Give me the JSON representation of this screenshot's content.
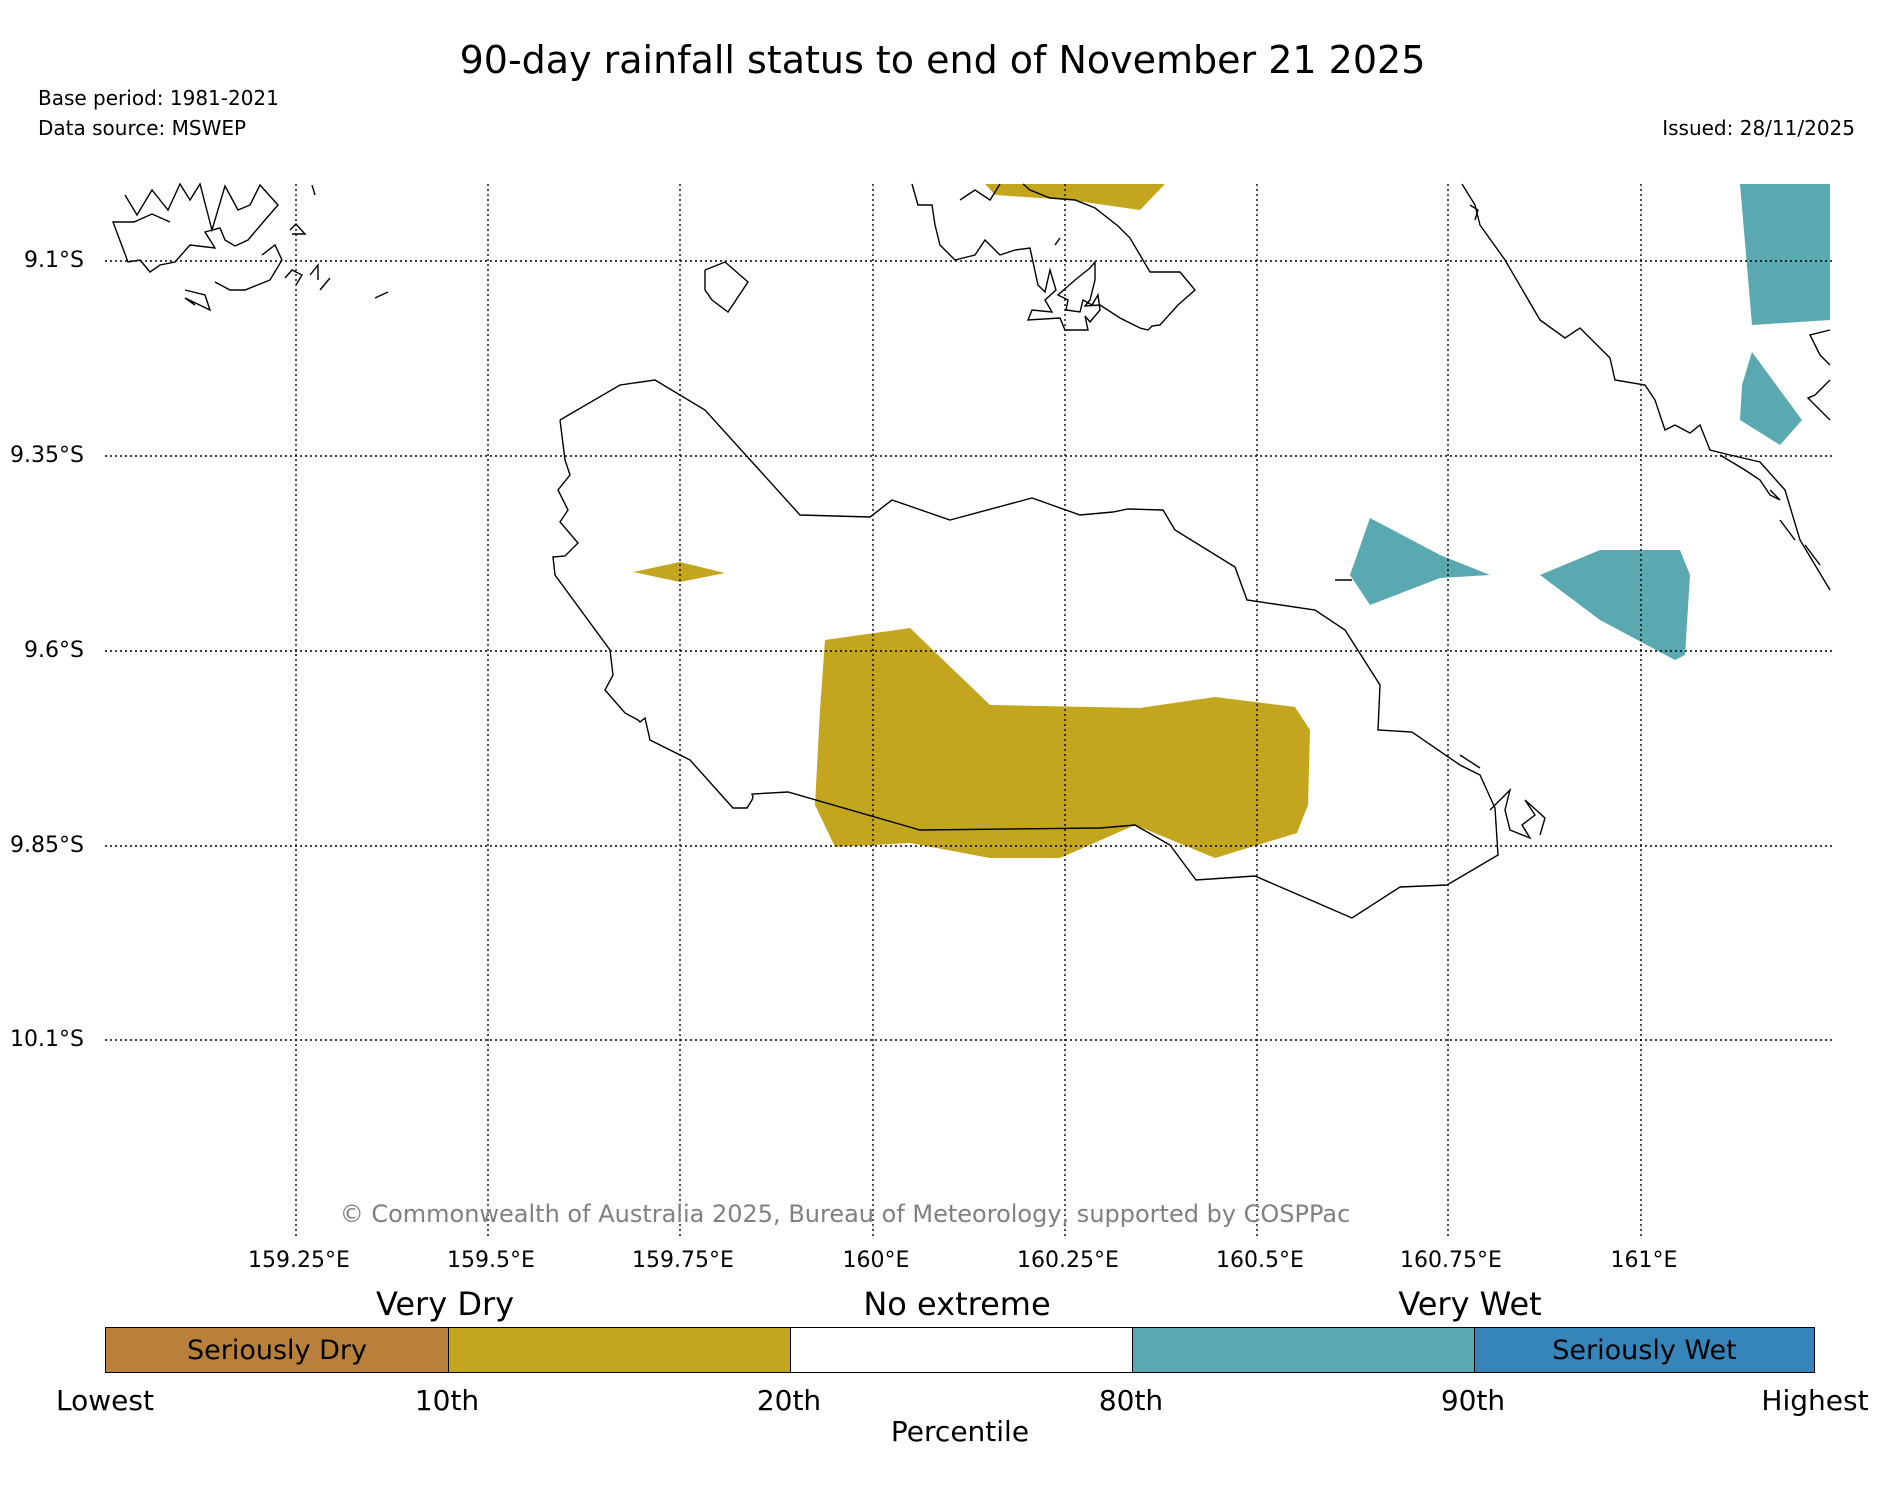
{
  "header": {
    "title": "90-day rainfall status to end of November 21 2025",
    "base_period": "Base period: 1981-2021",
    "data_source": "Data source: MSWEP",
    "issued": "Issued: 28/11/2025"
  },
  "map": {
    "lat_labels": [
      "9.1°S",
      "9.35°S",
      "9.6°S",
      "9.85°S",
      "10.1°S"
    ],
    "lon_labels": [
      "159.25°E",
      "159.5°E",
      "159.75°E",
      "160°E",
      "160.25°E",
      "160.5°E",
      "160.75°E",
      "161°E"
    ],
    "copyright": "© Commonwealth of Australia 2025, Bureau of Meteorology, supported by COSPPac",
    "colors": {
      "very_dry": "#c4a51e",
      "very_wet": "#5aa9b0",
      "coastline": "#000000",
      "grid": "#000000"
    }
  },
  "legend": {
    "categories": [
      "Very Dry",
      "No extreme",
      "Very Wet"
    ],
    "segments": [
      {
        "label": "Seriously Dry",
        "color": "#b8803a"
      },
      {
        "label": "",
        "color": "#c4a51e"
      },
      {
        "label": "",
        "color": "#ffffff"
      },
      {
        "label": "",
        "color": "#5aa9b0"
      },
      {
        "label": "Seriously Wet",
        "color": "#3585bb"
      }
    ],
    "percentile_ticks": [
      "Lowest",
      "10th",
      "20th",
      "80th",
      "90th",
      "Highest"
    ],
    "axis_label": "Percentile"
  }
}
